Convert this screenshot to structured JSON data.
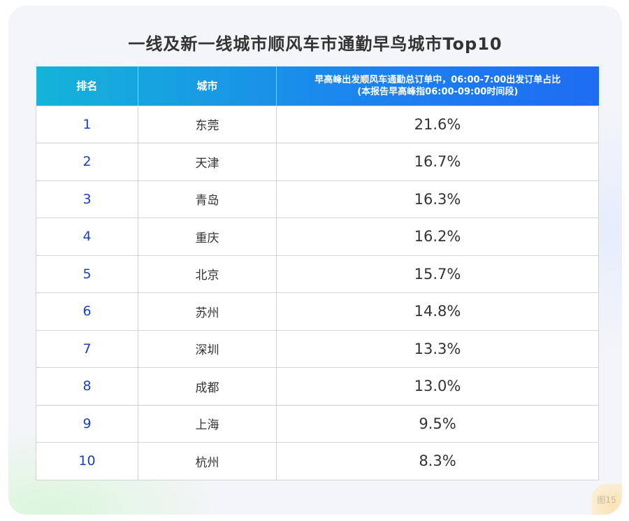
{
  "title": "一线及新一线城市顺风车市通勤早鸟城市Top10",
  "table": {
    "headers": {
      "rank": "排名",
      "city": "城市",
      "ratio_line1": "早高峰出发顺风车通勤总订单中，06:00-7:00出发订单占比",
      "ratio_line2": "(本报告早高峰指06:00-09:00时间段)"
    },
    "rows": [
      {
        "rank": "1",
        "city": "东莞",
        "value": "21.6%"
      },
      {
        "rank": "2",
        "city": "天津",
        "value": "16.7%"
      },
      {
        "rank": "3",
        "city": "青岛",
        "value": "16.3%"
      },
      {
        "rank": "4",
        "city": "重庆",
        "value": "16.2%"
      },
      {
        "rank": "5",
        "city": "北京",
        "value": "15.7%"
      },
      {
        "rank": "6",
        "city": "苏州",
        "value": "14.8%"
      },
      {
        "rank": "7",
        "city": "深圳",
        "value": "13.3%"
      },
      {
        "rank": "8",
        "city": "成都",
        "value": "13.0%"
      },
      {
        "rank": "9",
        "city": "上海",
        "value": "9.5%"
      },
      {
        "rank": "10",
        "city": "杭州",
        "value": "8.3%"
      }
    ]
  },
  "figure_label": "图15",
  "colors": {
    "header_gradient_start": "#14b4d8",
    "header_gradient_end": "#1e6cf2",
    "rank_text": "#1d3fb8",
    "title_text": "#333333"
  }
}
